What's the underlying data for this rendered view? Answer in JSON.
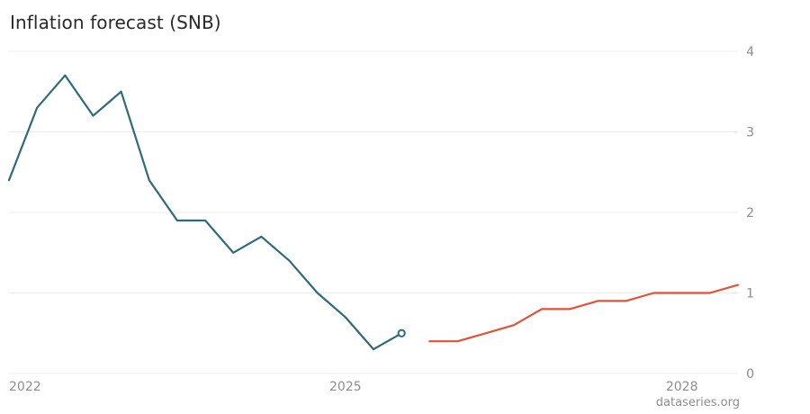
{
  "chart_data": {
    "type": "line",
    "title": "Inflation forecast (SNB)",
    "source": "dataseries.org",
    "ylim": [
      0,
      4
    ],
    "yticks": [
      "0",
      "1",
      "2",
      "3",
      "4"
    ],
    "xlim": [
      2022,
      2028.5
    ],
    "xticks": [
      {
        "value": 2022,
        "label": "2022"
      },
      {
        "value": 2025,
        "label": "2025"
      },
      {
        "value": 2028,
        "label": "2028"
      }
    ],
    "grid": true,
    "series": [
      {
        "color": "#2f6a7a",
        "points": [
          {
            "x": 2022.0,
            "y": 2.4
          },
          {
            "x": 2022.25,
            "y": 3.3
          },
          {
            "x": 2022.5,
            "y": 3.7
          },
          {
            "x": 2022.75,
            "y": 3.2
          },
          {
            "x": 2023.0,
            "y": 3.5
          },
          {
            "x": 2023.25,
            "y": 2.4
          },
          {
            "x": 2023.5,
            "y": 1.9
          },
          {
            "x": 2023.75,
            "y": 1.9
          },
          {
            "x": 2024.0,
            "y": 1.5
          },
          {
            "x": 2024.25,
            "y": 1.7
          },
          {
            "x": 2024.5,
            "y": 1.4
          },
          {
            "x": 2024.75,
            "y": 1.0
          },
          {
            "x": 2025.0,
            "y": 0.7
          },
          {
            "x": 2025.25,
            "y": 0.3
          },
          {
            "x": 2025.5,
            "y": 0.5
          }
        ],
        "end_marker": true
      },
      {
        "color": "#e0523a",
        "points": [
          {
            "x": 2025.75,
            "y": 0.4
          },
          {
            "x": 2026.0,
            "y": 0.4
          },
          {
            "x": 2026.25,
            "y": 0.5
          },
          {
            "x": 2026.5,
            "y": 0.6
          },
          {
            "x": 2026.75,
            "y": 0.8
          },
          {
            "x": 2027.0,
            "y": 0.8
          },
          {
            "x": 2027.25,
            "y": 0.9
          },
          {
            "x": 2027.5,
            "y": 0.9
          },
          {
            "x": 2027.75,
            "y": 1.0
          },
          {
            "x": 2028.0,
            "y": 1.0
          },
          {
            "x": 2028.25,
            "y": 1.0
          },
          {
            "x": 2028.5,
            "y": 1.1
          }
        ],
        "end_marker": false
      }
    ]
  }
}
